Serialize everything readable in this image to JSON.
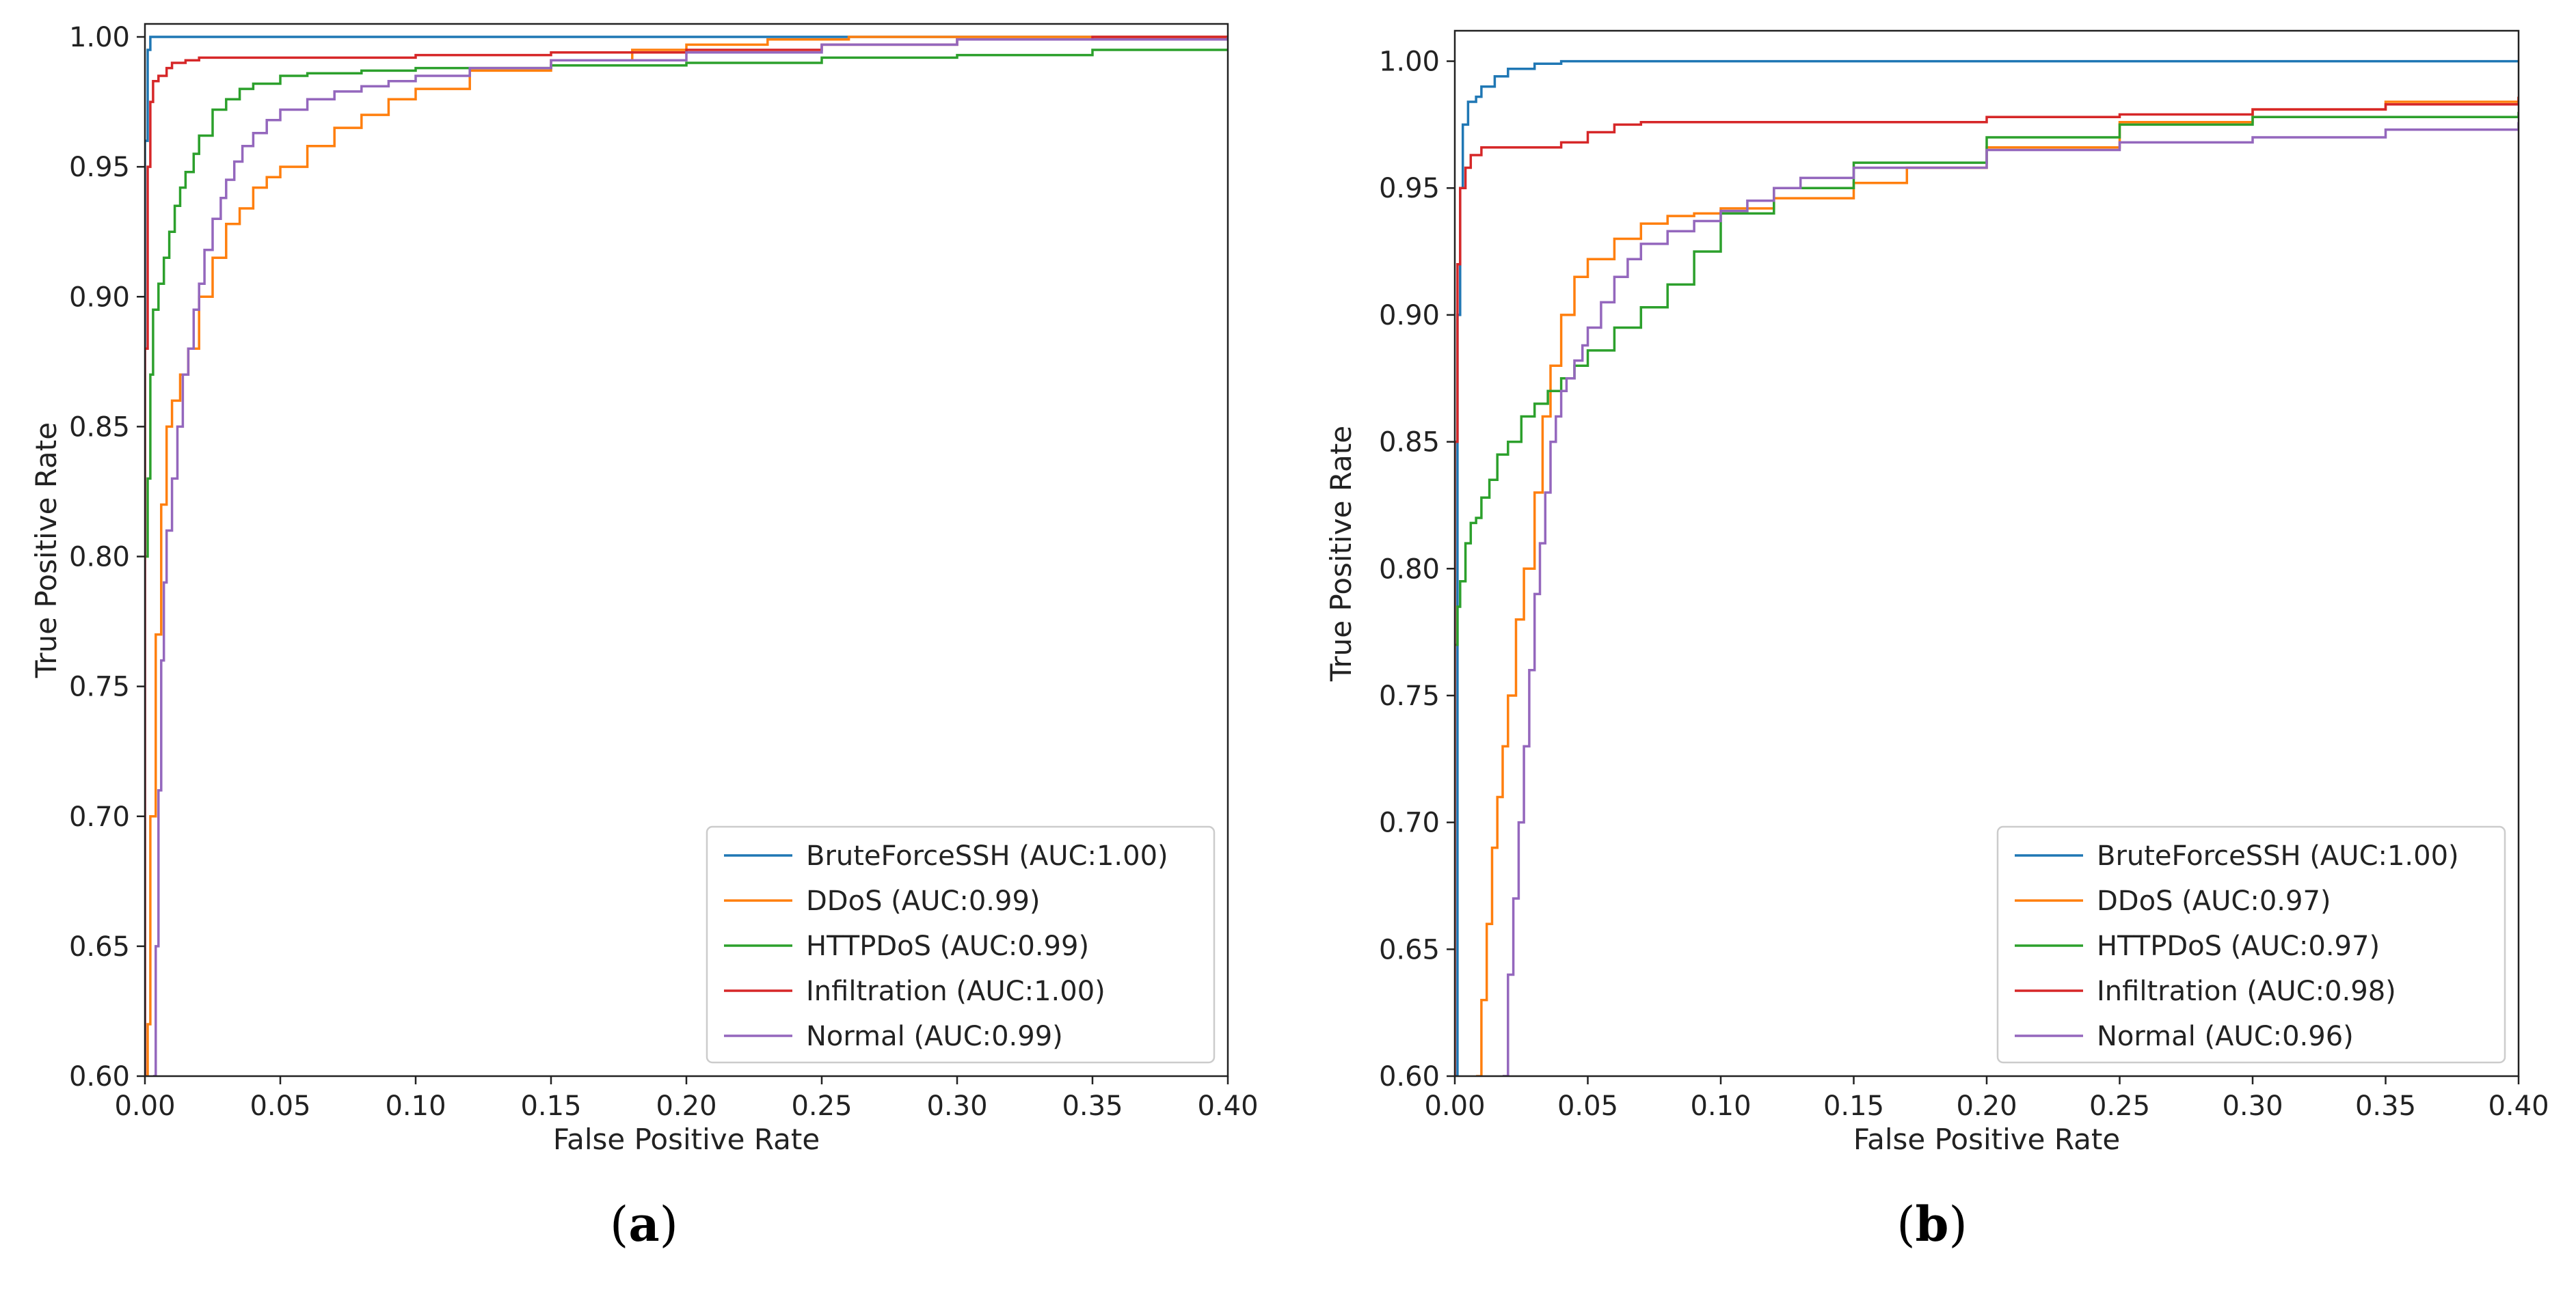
{
  "figure": {
    "panels": [
      {
        "id": "a",
        "caption_letter": "a"
      },
      {
        "id": "b",
        "caption_letter": "b"
      }
    ]
  },
  "colors": {
    "BruteForceSSH": "#1f77b4",
    "DDoS": "#ff7f0e",
    "HTTPDoS": "#2ca02c",
    "Infiltration": "#d62728",
    "Normal": "#9467bd"
  },
  "chart_data": [
    {
      "type": "line",
      "panel": "a",
      "xlabel": "False Positive Rate",
      "ylabel": "True Positive Rate",
      "xlim": [
        0.0,
        0.4
      ],
      "ylim": [
        0.6,
        1.005
      ],
      "xticks": [
        0.0,
        0.05,
        0.1,
        0.15,
        0.2,
        0.25,
        0.3,
        0.35,
        0.4
      ],
      "xtick_labels": [
        "0.00",
        "0.05",
        "0.10",
        "0.15",
        "0.20",
        "0.25",
        "0.30",
        "0.35",
        "0.40"
      ],
      "yticks": [
        0.6,
        0.65,
        0.7,
        0.75,
        0.8,
        0.85,
        0.9,
        0.95,
        1.0
      ],
      "ytick_labels": [
        "0.60",
        "0.65",
        "0.70",
        "0.75",
        "0.80",
        "0.85",
        "0.90",
        "0.95",
        "1.00"
      ],
      "legend_position": "bottom-right",
      "series": [
        {
          "name": "BruteForceSSH",
          "label": "BruteForceSSH (AUC:1.00)",
          "x": [
            0.0,
            0.0,
            0.001,
            0.002,
            0.4
          ],
          "y": [
            0.6,
            0.96,
            0.995,
            1.0,
            1.0
          ]
        },
        {
          "name": "DDoS",
          "label": "DDoS (AUC:0.99)",
          "x": [
            0.0,
            0.001,
            0.002,
            0.004,
            0.006,
            0.008,
            0.01,
            0.013,
            0.016,
            0.02,
            0.025,
            0.03,
            0.035,
            0.04,
            0.045,
            0.05,
            0.06,
            0.07,
            0.08,
            0.09,
            0.1,
            0.12,
            0.15,
            0.18,
            0.2,
            0.23,
            0.26,
            0.3,
            0.4
          ],
          "y": [
            0.6,
            0.62,
            0.7,
            0.77,
            0.82,
            0.85,
            0.86,
            0.87,
            0.88,
            0.9,
            0.915,
            0.928,
            0.934,
            0.942,
            0.946,
            0.95,
            0.958,
            0.965,
            0.97,
            0.976,
            0.98,
            0.987,
            0.991,
            0.995,
            0.997,
            0.999,
            1.0,
            1.0,
            1.0
          ]
        },
        {
          "name": "HTTPDoS",
          "label": "HTTPDoS (AUC:0.99)",
          "x": [
            0.0,
            0.001,
            0.002,
            0.003,
            0.005,
            0.007,
            0.009,
            0.011,
            0.013,
            0.015,
            0.018,
            0.02,
            0.025,
            0.03,
            0.035,
            0.04,
            0.05,
            0.06,
            0.08,
            0.1,
            0.15,
            0.2,
            0.25,
            0.3,
            0.35,
            0.4
          ],
          "y": [
            0.8,
            0.83,
            0.87,
            0.895,
            0.905,
            0.915,
            0.925,
            0.935,
            0.942,
            0.948,
            0.955,
            0.962,
            0.972,
            0.976,
            0.98,
            0.982,
            0.985,
            0.986,
            0.987,
            0.988,
            0.989,
            0.99,
            0.992,
            0.993,
            0.995,
            0.995
          ]
        },
        {
          "name": "Infiltration",
          "label": "Infiltration (AUC:1.00)",
          "x": [
            0.0,
            0.0,
            0.001,
            0.002,
            0.003,
            0.005,
            0.008,
            0.01,
            0.015,
            0.02,
            0.05,
            0.1,
            0.15,
            0.2,
            0.25,
            0.3,
            0.35,
            0.4
          ],
          "y": [
            0.6,
            0.88,
            0.95,
            0.975,
            0.983,
            0.985,
            0.988,
            0.99,
            0.991,
            0.992,
            0.992,
            0.993,
            0.994,
            0.995,
            0.997,
            0.999,
            1.0,
            1.0
          ]
        },
        {
          "name": "Normal",
          "label": "Normal (AUC:0.99)",
          "x": [
            0.003,
            0.004,
            0.005,
            0.006,
            0.007,
            0.008,
            0.01,
            0.012,
            0.014,
            0.016,
            0.018,
            0.02,
            0.022,
            0.025,
            0.028,
            0.03,
            0.033,
            0.036,
            0.04,
            0.045,
            0.05,
            0.06,
            0.07,
            0.08,
            0.09,
            0.1,
            0.12,
            0.15,
            0.2,
            0.25,
            0.3,
            0.4
          ],
          "y": [
            0.6,
            0.65,
            0.71,
            0.76,
            0.79,
            0.81,
            0.83,
            0.85,
            0.87,
            0.88,
            0.895,
            0.905,
            0.918,
            0.93,
            0.938,
            0.945,
            0.952,
            0.958,
            0.963,
            0.968,
            0.972,
            0.976,
            0.979,
            0.981,
            0.983,
            0.985,
            0.988,
            0.991,
            0.994,
            0.997,
            0.999,
            1.0
          ]
        }
      ]
    },
    {
      "type": "line",
      "panel": "b",
      "xlabel": "False Positive Rate",
      "ylabel": "True Positive Rate",
      "xlim": [
        0.0,
        0.4
      ],
      "ylim": [
        0.6,
        1.012
      ],
      "xticks": [
        0.0,
        0.05,
        0.1,
        0.15,
        0.2,
        0.25,
        0.3,
        0.35,
        0.4
      ],
      "xtick_labels": [
        "0.00",
        "0.05",
        "0.10",
        "0.15",
        "0.20",
        "0.25",
        "0.30",
        "0.35",
        "0.40"
      ],
      "yticks": [
        0.6,
        0.65,
        0.7,
        0.75,
        0.8,
        0.85,
        0.9,
        0.95,
        1.0
      ],
      "ytick_labels": [
        "0.60",
        "0.65",
        "0.70",
        "0.75",
        "0.80",
        "0.85",
        "0.90",
        "0.95",
        "1.00"
      ],
      "legend_position": "bottom-right",
      "series": [
        {
          "name": "BruteForceSSH",
          "label": "BruteForceSSH (AUC:1.00)",
          "x": [
            0.0,
            0.001,
            0.002,
            0.003,
            0.005,
            0.008,
            0.01,
            0.015,
            0.02,
            0.03,
            0.04,
            0.05,
            0.4
          ],
          "y": [
            0.6,
            0.9,
            0.95,
            0.975,
            0.984,
            0.986,
            0.99,
            0.994,
            0.997,
            0.999,
            1.0,
            1.0,
            1.0
          ]
        },
        {
          "name": "DDoS",
          "label": "DDoS (AUC:0.97)",
          "x": [
            0.008,
            0.01,
            0.012,
            0.014,
            0.016,
            0.018,
            0.02,
            0.023,
            0.026,
            0.03,
            0.033,
            0.036,
            0.04,
            0.045,
            0.05,
            0.06,
            0.07,
            0.08,
            0.09,
            0.1,
            0.12,
            0.15,
            0.17,
            0.2,
            0.25,
            0.3,
            0.35,
            0.4
          ],
          "y": [
            0.6,
            0.63,
            0.66,
            0.69,
            0.71,
            0.73,
            0.75,
            0.78,
            0.8,
            0.83,
            0.86,
            0.88,
            0.9,
            0.915,
            0.922,
            0.93,
            0.936,
            0.939,
            0.94,
            0.942,
            0.946,
            0.952,
            0.958,
            0.966,
            0.976,
            0.981,
            0.984,
            0.986
          ]
        },
        {
          "name": "HTTPDoS",
          "label": "HTTPDoS (AUC:0.97)",
          "x": [
            0.0,
            0.001,
            0.002,
            0.004,
            0.006,
            0.008,
            0.01,
            0.013,
            0.016,
            0.02,
            0.025,
            0.03,
            0.035,
            0.04,
            0.045,
            0.05,
            0.06,
            0.07,
            0.08,
            0.09,
            0.1,
            0.12,
            0.15,
            0.2,
            0.25,
            0.3,
            0.4
          ],
          "y": [
            0.77,
            0.785,
            0.795,
            0.81,
            0.818,
            0.82,
            0.828,
            0.835,
            0.845,
            0.85,
            0.86,
            0.865,
            0.87,
            0.875,
            0.88,
            0.886,
            0.895,
            0.903,
            0.912,
            0.925,
            0.94,
            0.95,
            0.96,
            0.97,
            0.975,
            0.978,
            0.98
          ]
        },
        {
          "name": "Infiltration",
          "label": "Infiltration (AUC:0.98)",
          "x": [
            0.0,
            0.0,
            0.001,
            0.002,
            0.004,
            0.006,
            0.01,
            0.02,
            0.04,
            0.05,
            0.06,
            0.07,
            0.1,
            0.15,
            0.2,
            0.25,
            0.3,
            0.35,
            0.4
          ],
          "y": [
            0.6,
            0.85,
            0.92,
            0.95,
            0.958,
            0.963,
            0.966,
            0.966,
            0.968,
            0.972,
            0.975,
            0.976,
            0.976,
            0.976,
            0.978,
            0.979,
            0.981,
            0.983,
            0.986
          ]
        },
        {
          "name": "Normal",
          "label": "Normal (AUC:0.96)",
          "x": [
            0.018,
            0.02,
            0.022,
            0.024,
            0.026,
            0.028,
            0.03,
            0.032,
            0.034,
            0.036,
            0.038,
            0.04,
            0.042,
            0.045,
            0.048,
            0.05,
            0.055,
            0.06,
            0.065,
            0.07,
            0.08,
            0.09,
            0.1,
            0.11,
            0.12,
            0.13,
            0.15,
            0.2,
            0.25,
            0.3,
            0.35,
            0.4
          ],
          "y": [
            0.6,
            0.64,
            0.67,
            0.7,
            0.73,
            0.76,
            0.79,
            0.81,
            0.83,
            0.85,
            0.86,
            0.87,
            0.875,
            0.882,
            0.888,
            0.895,
            0.905,
            0.915,
            0.922,
            0.928,
            0.933,
            0.937,
            0.941,
            0.945,
            0.95,
            0.954,
            0.958,
            0.965,
            0.968,
            0.97,
            0.973,
            0.976
          ]
        }
      ]
    }
  ]
}
